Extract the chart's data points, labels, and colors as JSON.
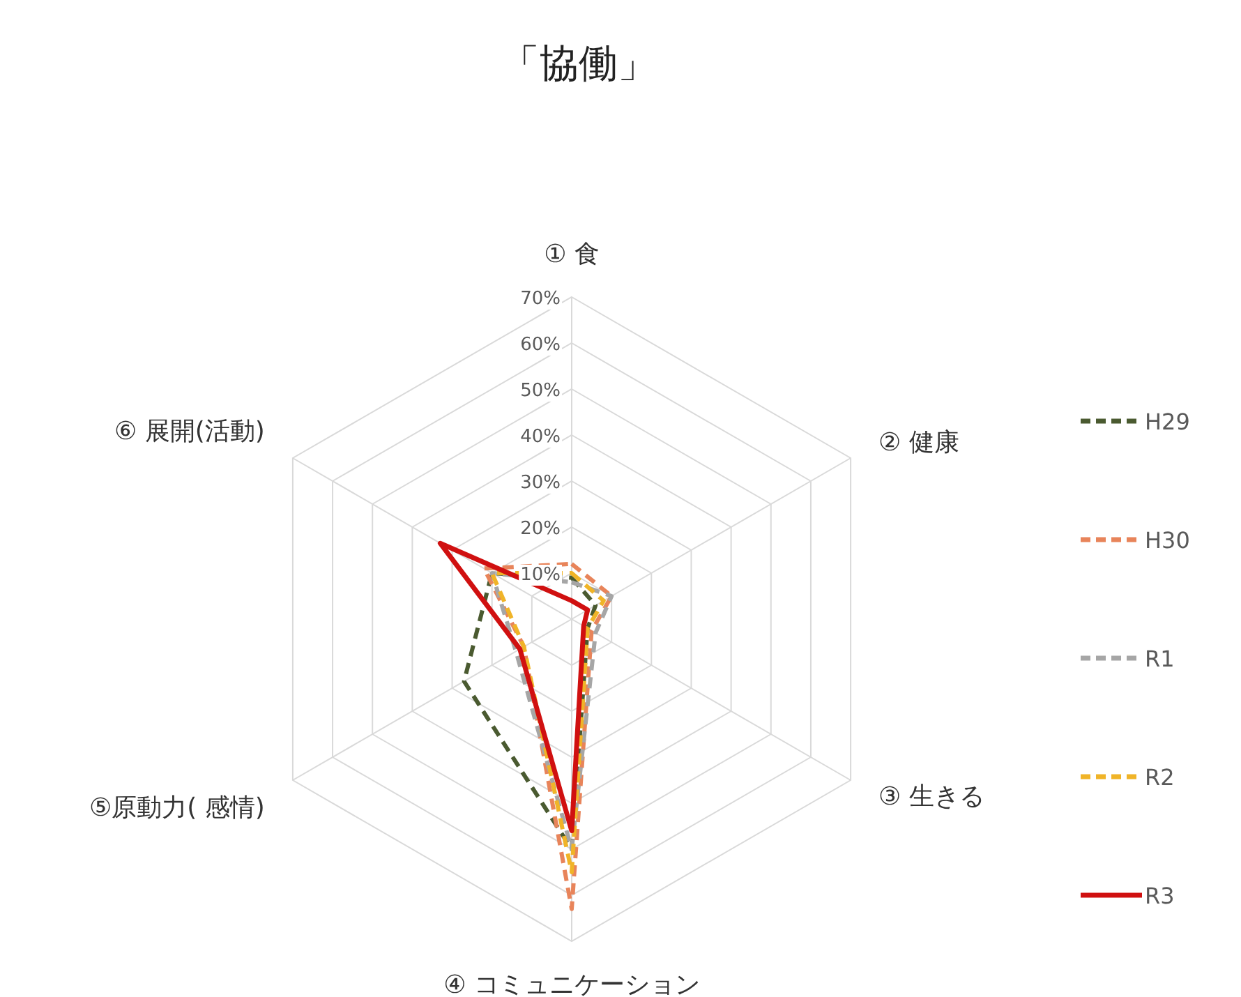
{
  "chart_data": {
    "type": "radar",
    "title": "「協働」",
    "categories": [
      "① 食",
      "② 健康",
      "③ 生きる",
      "④ コミュニケーション",
      "⑤原動力( 感情)",
      "⑥ 展開(活動)"
    ],
    "ylim": [
      0,
      70
    ],
    "yticks": [
      {
        "value": 10,
        "label": "10%"
      },
      {
        "value": 20,
        "label": "20%"
      },
      {
        "value": 30,
        "label": "30%"
      },
      {
        "value": 40,
        "label": "40%"
      },
      {
        "value": 50,
        "label": "50%"
      },
      {
        "value": 60,
        "label": "60%"
      },
      {
        "value": 70,
        "label": "70%"
      }
    ],
    "grid": true,
    "legend": "right",
    "marker": "none",
    "series": [
      {
        "name": "H29",
        "color": "#4a5a30",
        "line_style": "dashed",
        "values": [
          9,
          6,
          4,
          50,
          27,
          20
        ]
      },
      {
        "name": "H30",
        "color": "#e8845a",
        "line_style": "dashed",
        "values": [
          12,
          10,
          5,
          63,
          12,
          22
        ]
      },
      {
        "name": "R1",
        "color": "#a6a6a6",
        "line_style": "dashed",
        "values": [
          8,
          10,
          6,
          50,
          14,
          20
        ]
      },
      {
        "name": "R2",
        "color": "#f0b428",
        "line_style": "dashed",
        "values": [
          10,
          8,
          4,
          55,
          12,
          20
        ]
      },
      {
        "name": "R3",
        "color": "#d01010",
        "line_style": "solid",
        "values": [
          4,
          4,
          3,
          46,
          13,
          33
        ]
      }
    ]
  }
}
